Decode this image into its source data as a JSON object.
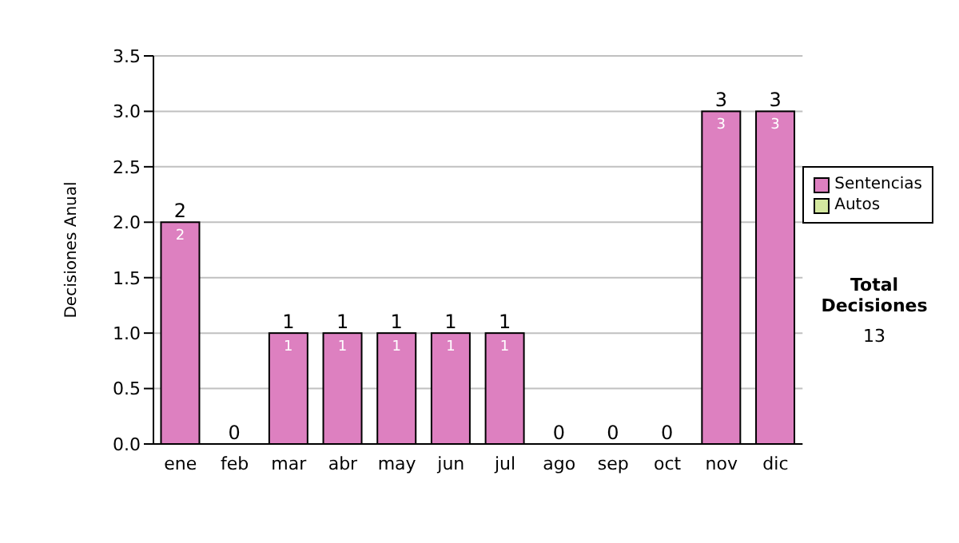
{
  "chart_data": {
    "type": "bar",
    "ylabel": "Decisiones Anual",
    "categories": [
      "ene",
      "feb",
      "mar",
      "abr",
      "may",
      "jun",
      "jul",
      "ago",
      "sep",
      "oct",
      "nov",
      "dic"
    ],
    "stacked": true,
    "series": [
      {
        "name": "Sentencias",
        "color": "#dd80c0",
        "values": [
          2,
          0,
          1,
          1,
          1,
          1,
          1,
          0,
          0,
          0,
          3,
          3
        ],
        "value_labels": [
          "2",
          null,
          "1",
          "1",
          "1",
          "1",
          "1",
          null,
          null,
          null,
          "3",
          "3"
        ]
      },
      {
        "name": "Autos",
        "color": "#d4e8a0",
        "values": [
          0,
          0,
          0,
          0,
          0,
          0,
          0,
          0,
          0,
          0,
          0,
          0
        ]
      }
    ],
    "totals": [
      "2",
      "0",
      "1",
      "1",
      "1",
      "1",
      "1",
      "0",
      "0",
      "0",
      "3",
      "3"
    ],
    "ylim": [
      0,
      3.5
    ],
    "yticks": [
      {
        "value": 0,
        "label": "0.0"
      },
      0.5,
      {
        "value": 1,
        "label": "1.0"
      },
      1.5,
      {
        "value": 2,
        "label": "2.0"
      },
      2.5,
      {
        "value": 3,
        "label": "3.0"
      },
      3.5
    ],
    "grid": "y",
    "legend": "right",
    "annotations": [
      "Total Decisiones",
      "13"
    ]
  }
}
